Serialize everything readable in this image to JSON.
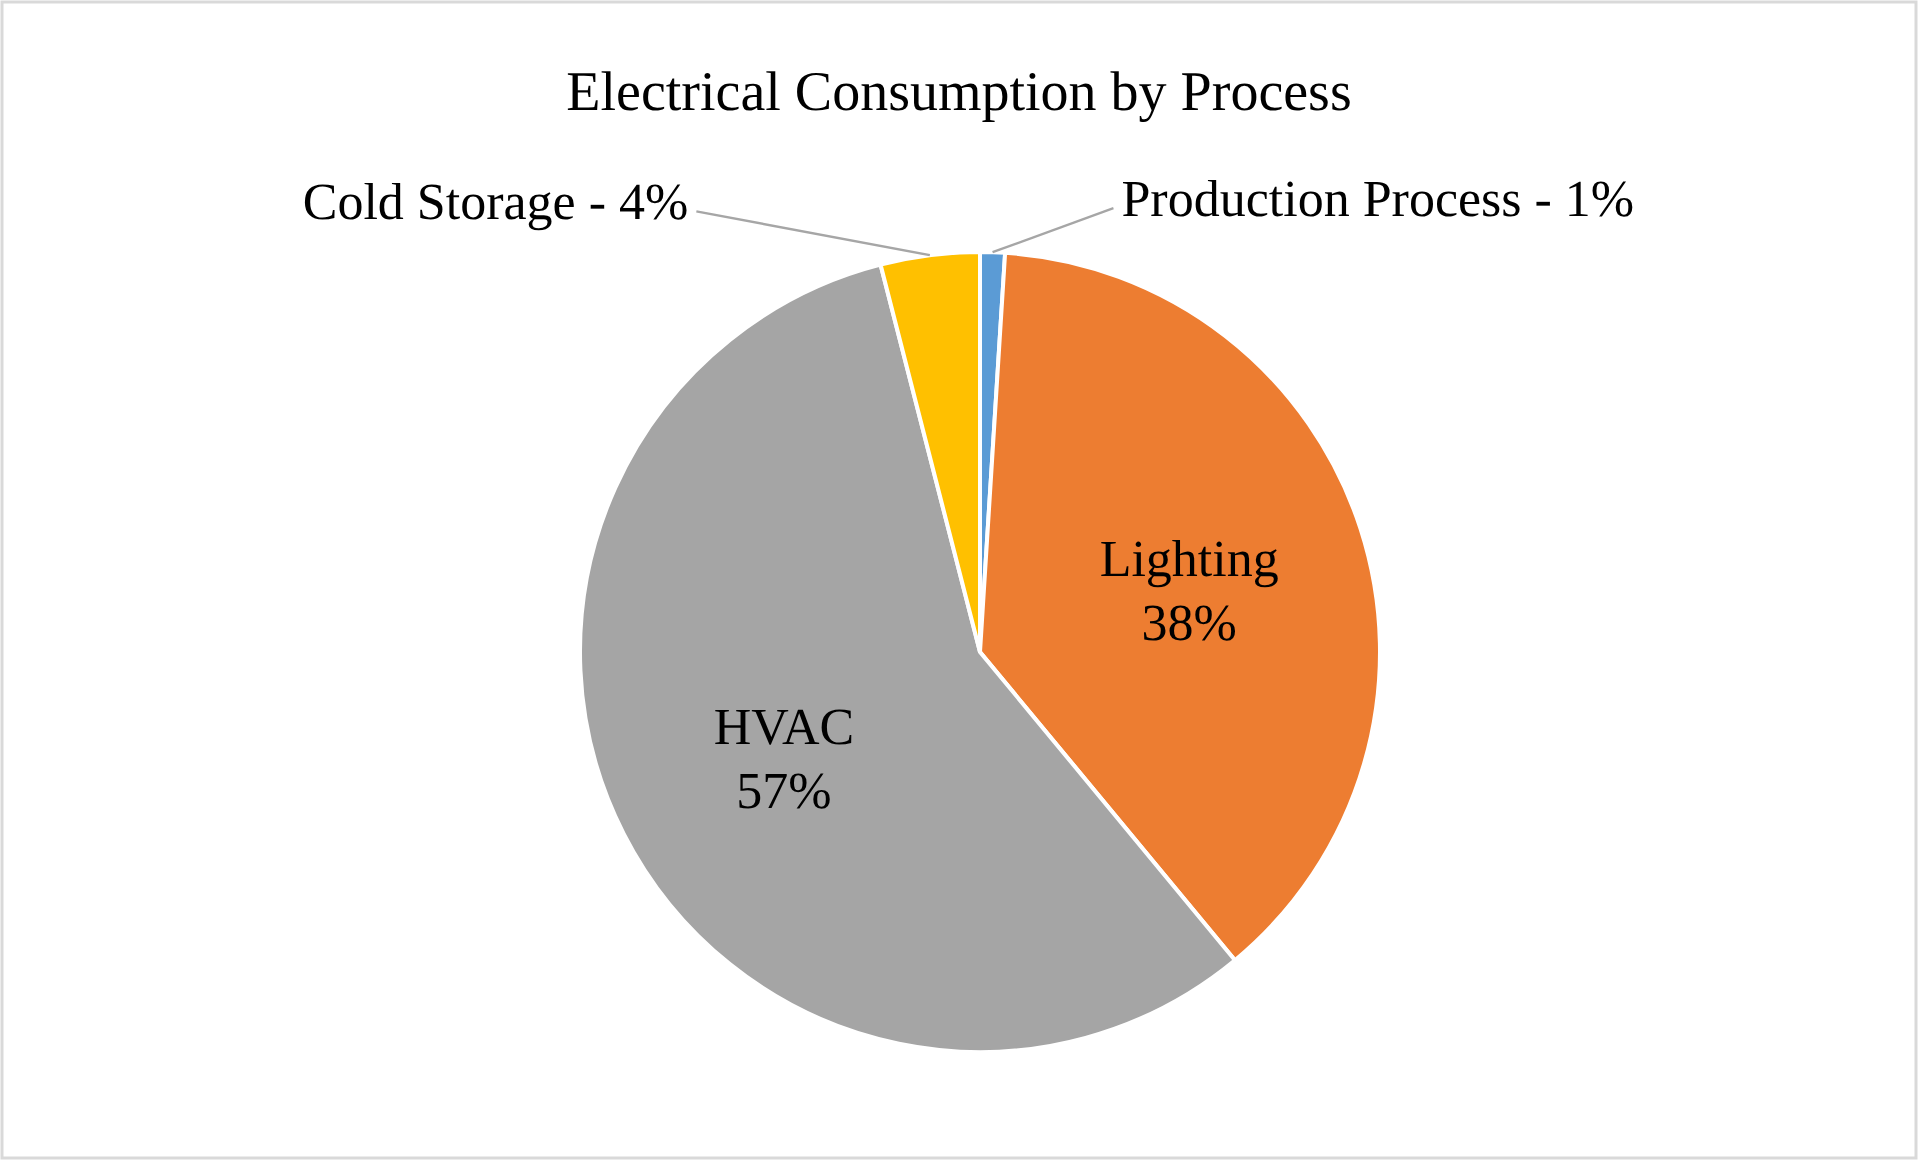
{
  "chart_data": {
    "type": "pie",
    "title": "Electrical Consumption by Process",
    "categories": [
      "Production Process",
      "Lighting",
      "HVAC",
      "Cold Storage"
    ],
    "values": [
      1,
      38,
      57,
      4
    ],
    "colors": [
      "#5b9bd5",
      "#ed7d31",
      "#a5a5a5",
      "#ffc000"
    ],
    "value_labels": [
      "1%",
      "38%",
      "57%",
      "4%"
    ]
  }
}
